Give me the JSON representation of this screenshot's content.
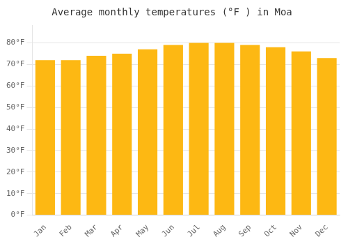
{
  "chart_data": {
    "type": "bar",
    "title": "Average monthly temperatures (°F ) in Moa",
    "categories": [
      "Jan",
      "Feb",
      "Mar",
      "Apr",
      "May",
      "Jun",
      "Jul",
      "Aug",
      "Sep",
      "Oct",
      "Nov",
      "Dec"
    ],
    "values": [
      72,
      72,
      74,
      75,
      77,
      79,
      80,
      80,
      79,
      78,
      76,
      73
    ],
    "color": "#FDB813",
    "ylim": [
      0,
      88
    ],
    "yticks": [
      {
        "value": 0,
        "label": "0°F"
      },
      {
        "value": 10,
        "label": "10°F"
      },
      {
        "value": 20,
        "label": "20°F"
      },
      {
        "value": 30,
        "label": "30°F"
      },
      {
        "value": 40,
        "label": "40°F"
      },
      {
        "value": 50,
        "label": "50°F"
      },
      {
        "value": 60,
        "label": "60°F"
      },
      {
        "value": 70,
        "label": "70°F"
      },
      {
        "value": 80,
        "label": "80°F"
      }
    ],
    "grid": true
  }
}
